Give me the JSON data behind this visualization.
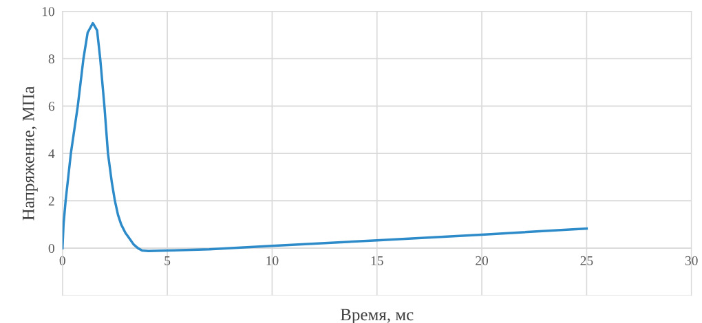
{
  "chart_data": {
    "type": "line",
    "xlabel": "Время, мс",
    "ylabel": "Напряжение, МПа",
    "x": [
      0,
      0.05,
      0.15,
      0.4,
      0.73,
      1.0,
      1.2,
      1.45,
      1.65,
      1.8,
      2.0,
      2.17,
      2.35,
      2.5,
      2.65,
      2.8,
      3.0,
      3.2,
      3.4,
      3.6,
      3.8,
      4.1,
      5,
      7,
      10,
      15,
      20,
      25
    ],
    "series": [
      {
        "color": "#2e8bc9",
        "values": [
          0,
          1,
          2,
          4,
          6,
          8,
          9.1,
          9.5,
          9.2,
          8,
          6,
          4,
          2.8,
          2,
          1.4,
          1.0,
          0.65,
          0.4,
          0.15,
          0,
          -0.1,
          -0.12,
          -0.1,
          -0.05,
          0.1,
          0.33,
          0.57,
          0.83
        ]
      }
    ],
    "xlim": [
      0,
      30
    ],
    "xticks": [
      0,
      5,
      10,
      15,
      20,
      25,
      30
    ],
    "ylim": [
      -2,
      10
    ],
    "yticks": [
      {
        "value": -2,
        "label": null
      },
      0,
      2,
      4,
      6,
      8,
      10
    ],
    "grid": true,
    "legend": false,
    "marker": "none",
    "line_style": "solid"
  }
}
